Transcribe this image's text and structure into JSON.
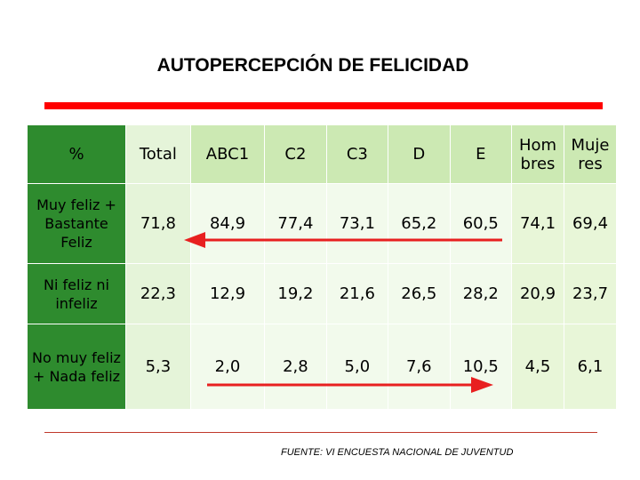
{
  "title": "AUTOPERCEPCIÓN DE FELICIDAD",
  "table": {
    "corner": "%",
    "columns": [
      "Total",
      "ABC1",
      "C2",
      "C3",
      "D",
      "E",
      "Hom bres",
      "Muje res"
    ],
    "rows": [
      {
        "label": "Muy feliz + Bastante Feliz",
        "values": [
          "71,8",
          "84,9",
          "77,4",
          "73,1",
          "65,2",
          "60,5",
          "74,1",
          "69,4"
        ]
      },
      {
        "label": "Ni feliz ni infeliz",
        "values": [
          "22,3",
          "12,9",
          "19,2",
          "21,6",
          "26,5",
          "28,2",
          "20,9",
          "23,7"
        ]
      },
      {
        "label": "No muy feliz + Nada feliz",
        "values": [
          "5,3",
          "2,0",
          "2,8",
          "5,0",
          "7,6",
          "10,5",
          "4,5",
          "6,1"
        ]
      }
    ]
  },
  "arrows": {
    "color": "#e82020"
  },
  "colors": {
    "label_bg": "#2e8b2e",
    "header_bg": "#cce9b3",
    "cell_bg": "#f2faec",
    "accent": "#ff0000"
  },
  "source": "FUENTE: VI ENCUESTA NACIONAL DE JUVENTUD"
}
